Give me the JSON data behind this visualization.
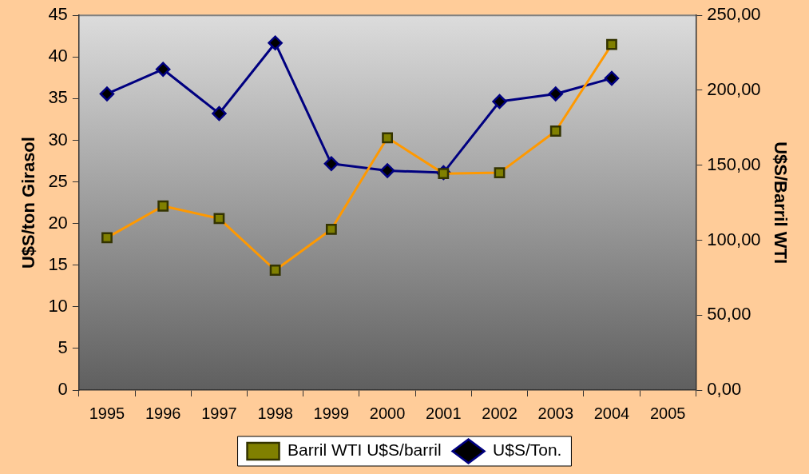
{
  "chart_data": {
    "type": "line",
    "ylabel": "U$S/ton Girasol",
    "y2label": "U$S/Barril WTI",
    "categories": [
      "1995",
      "1996",
      "1997",
      "1998",
      "1999",
      "2000",
      "2001",
      "2002",
      "2003",
      "2004",
      "2005"
    ],
    "series": [
      {
        "name": "Barril WTI U$S/barril",
        "color": "#ff9900",
        "marker": "square",
        "values": [
          18.3,
          22.1,
          20.6,
          14.4,
          19.3,
          30.3,
          26.0,
          26.1,
          31.1,
          41.5,
          null
        ]
      },
      {
        "name": "U$S/Ton.",
        "color": "#000080",
        "marker": "diamond",
        "axis": "y2",
        "values": [
          197.6,
          214,
          184.5,
          231.6,
          151,
          146.4,
          145,
          192.5,
          197.6,
          208,
          null
        ]
      }
    ],
    "ylim": [
      0,
      45
    ],
    "yticks": [
      0,
      5,
      10,
      15,
      20,
      25,
      30,
      35,
      40,
      45
    ],
    "y2lim": [
      0,
      250
    ],
    "y2ticks": [
      {
        "value": 0,
        "label": "0,00"
      },
      {
        "value": 50,
        "label": "50,00"
      },
      {
        "value": 100,
        "label": "100,00"
      },
      {
        "value": 150,
        "label": "150,00"
      },
      {
        "value": 200,
        "label": "200,00"
      },
      {
        "value": 250,
        "label": "250,00"
      }
    ],
    "legend": "bottom",
    "line_style": "solid"
  }
}
